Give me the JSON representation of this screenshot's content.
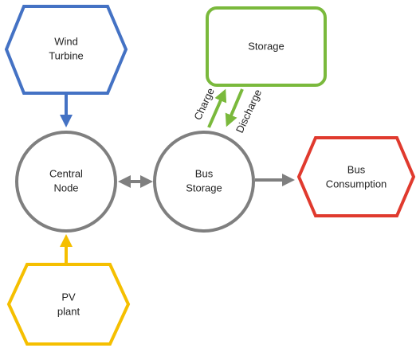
{
  "nodes": [
    {
      "label": [
        "Wind",
        "Turbine"
      ]
    },
    {
      "label": [
        "Storage"
      ]
    },
    {
      "label": [
        "Central",
        "Node"
      ]
    },
    {
      "label": [
        "Bus",
        "Storage"
      ]
    },
    {
      "label": [
        "Bus",
        "Consumption"
      ]
    },
    {
      "label": [
        "PV",
        "plant"
      ]
    }
  ],
  "edges": [
    {
      "label": "Charge"
    },
    {
      "label": "Discharge"
    }
  ]
}
